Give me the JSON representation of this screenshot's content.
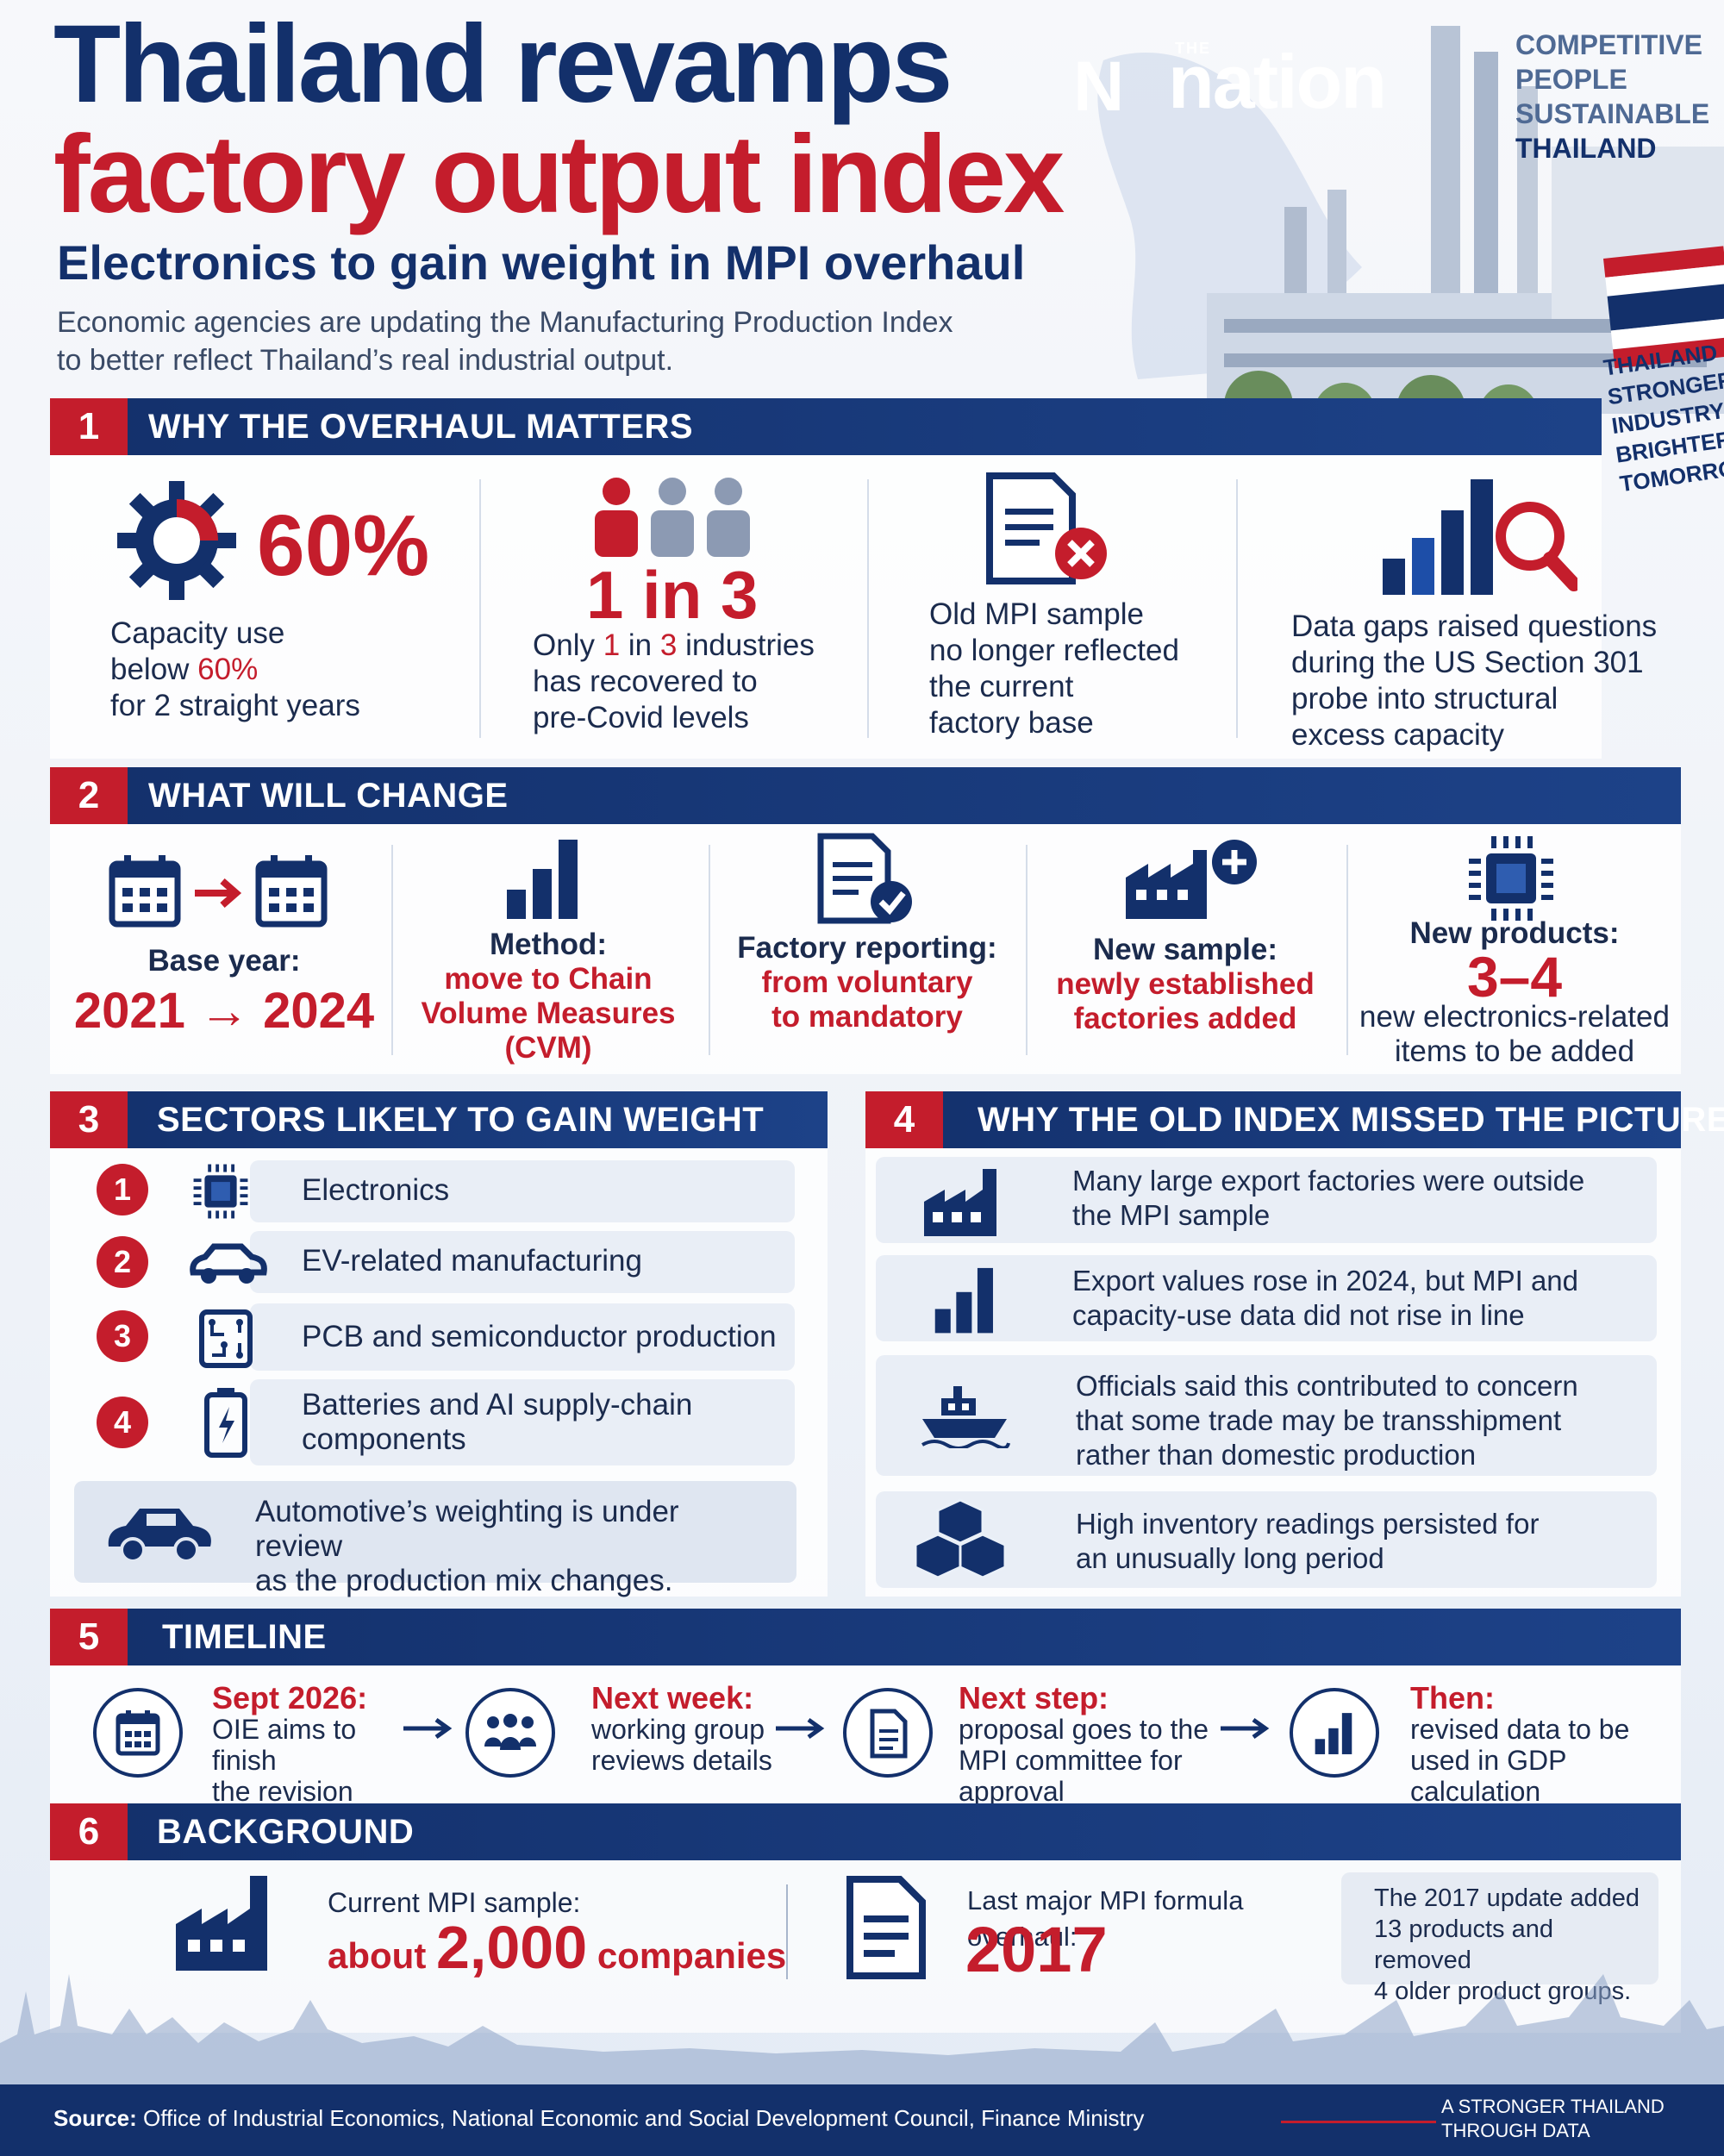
{
  "header": {
    "title_line1": "Thailand revamps",
    "title_line2": "factory output index",
    "subtitle": "Electronics to gain weight in MPI overhaul",
    "intro_line1": "Economic agencies are updating the Manufacturing Production Index",
    "intro_line2": "to better reflect Thailand’s real industrial output.",
    "logo_the": "THE",
    "logo_word": "nation",
    "tagline": [
      "COMPETITIVE",
      "PEOPLE",
      "SUSTAINABLE",
      "THAILAND"
    ],
    "side_tagline": [
      "THAILAND",
      "STRONGER",
      "INDUSTRY",
      "BRIGHTER",
      "TOMORROW"
    ]
  },
  "section1": {
    "number": "1",
    "title": "WHY THE OVERHAUL MATTERS",
    "item1": {
      "big": "60%",
      "l1": "Capacity use",
      "l2a": "below ",
      "l2b": "60%",
      "l3": "for 2 straight years",
      "icon": "gear-icon"
    },
    "item2": {
      "big": "1 in 3",
      "l1a": "Only ",
      "l1b": "1",
      "l1c": " in ",
      "l1d": "3",
      "l1e": " industries",
      "l2": "has recovered to",
      "l3": "pre-Covid levels",
      "icon": "people-icon"
    },
    "item3": {
      "l1": "Old MPI sample",
      "l2": "no longer reflected",
      "l3": "the current",
      "l4": "factory base",
      "icon": "document-x-icon"
    },
    "item4": {
      "l1": "Data gaps raised questions",
      "l2": "during the US Section 301",
      "l3": "probe into structural",
      "l4": "excess capacity",
      "icon": "chart-magnifier-icon"
    }
  },
  "section2": {
    "number": "2",
    "title": "WHAT WILL CHANGE",
    "item1": {
      "label": "Base year:",
      "value": "2021 → 2024",
      "icon": "calendar-arrow-icon"
    },
    "item2": {
      "label": "Method:",
      "v1": "move to Chain",
      "v2": "Volume Measures",
      "v3": "(CVM)",
      "icon": "bar-chart-icon"
    },
    "item3": {
      "label": "Factory reporting:",
      "v1": "from voluntary",
      "v2": "to mandatory",
      "icon": "document-check-icon"
    },
    "item4": {
      "label": "New sample:",
      "v1": "newly established",
      "v2": "factories added",
      "icon": "factory-plus-icon"
    },
    "item5": {
      "label": "New products:",
      "big": "3–4",
      "v1": "new electronics-related",
      "v2": "items to be added",
      "icon": "chip-icon"
    }
  },
  "section3": {
    "number": "3",
    "title": "SECTORS LIKELY TO GAIN WEIGHT",
    "items": [
      {
        "n": "1",
        "l1": "Electronics",
        "l2": "",
        "icon": "chip-icon"
      },
      {
        "n": "2",
        "l1": "EV-related manufacturing",
        "l2": "",
        "icon": "car-icon"
      },
      {
        "n": "3",
        "l1": "PCB and semiconductor production",
        "l2": "",
        "icon": "circuit-board-icon"
      },
      {
        "n": "4",
        "l1": "Batteries and AI supply-chain",
        "l2": "components",
        "icon": "battery-icon"
      }
    ],
    "note_l1": "Automotive’s weighting is under review",
    "note_l2": "as the production mix changes."
  },
  "section4": {
    "number": "4",
    "title": "WHY THE OLD INDEX MISSED THE PICTURE",
    "items": [
      {
        "l1": "Many large export factories were outside",
        "l2": "the MPI sample",
        "l3": "",
        "icon": "factory-icon"
      },
      {
        "l1": "Export values rose in 2024, but MPI and",
        "l2": "capacity-use data did not rise in line",
        "l3": "",
        "icon": "bar-chart-icon"
      },
      {
        "l1": "Officials said this contributed to concern",
        "l2": "that some trade may be transshipment",
        "l3": "rather than domestic production",
        "icon": "ship-icon"
      },
      {
        "l1": "High inventory readings persisted for",
        "l2": "an unusually long period",
        "l3": "",
        "icon": "boxes-icon"
      }
    ]
  },
  "section5": {
    "number": "5",
    "title": "TIMELINE",
    "steps": [
      {
        "head": "Sept 2026:",
        "l1": "OIE aims to finish",
        "l2": "the revision",
        "icon": "calendar-icon"
      },
      {
        "head": "Next week:",
        "l1": "working group",
        "l2": "reviews details",
        "icon": "group-icon"
      },
      {
        "head": "Next step:",
        "l1": "proposal goes to the",
        "l2": "MPI committee for approval",
        "icon": "document-icon"
      },
      {
        "head": "Then:",
        "l1": "revised data to be",
        "l2": "used in GDP calculation",
        "icon": "bar-chart-icon"
      }
    ]
  },
  "section6": {
    "number": "6",
    "title": "BACKGROUND",
    "sample_label": "Current MPI sample:",
    "sample_a": "about ",
    "sample_b": "2,000",
    "sample_c": " companies",
    "overhaul_label": "Last major MPI formula overhaul:",
    "overhaul_year": "2017",
    "note_l1": "The 2017 update added",
    "note_l2": "13 products and removed",
    "note_l3": "4 older product groups."
  },
  "footer": {
    "source_label": "Source:",
    "source_text": " Office of Industrial Economics, National Economic and Social Development Council, Finance Ministry",
    "tag_l1": "A STRONGER THAILAND",
    "tag_l2": "THROUGH DATA"
  },
  "colors": {
    "navy": "#13306b",
    "red": "#c41d2c",
    "panel": "#ffffff"
  }
}
